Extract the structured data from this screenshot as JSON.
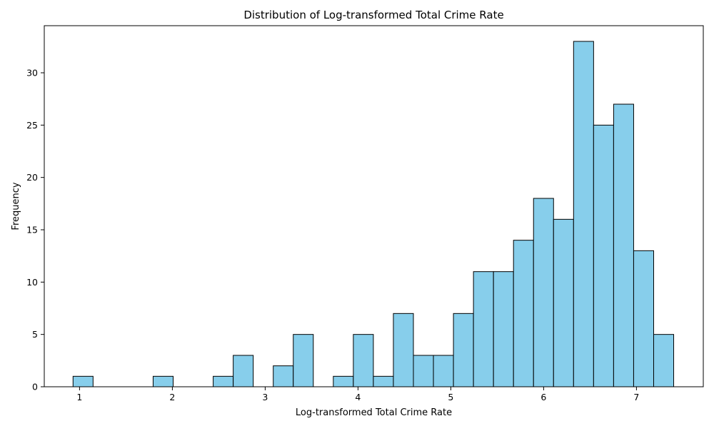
{
  "chart_data": {
    "type": "bar",
    "title": "Distribution of Log-transformed Total Crime Rate",
    "xlabel": "Log-transformed Total Crime Rate",
    "ylabel": "Frequency",
    "xlim": [
      0.62,
      7.72
    ],
    "ylim": [
      0,
      34.5
    ],
    "bin_start": 0.93,
    "bin_width": 0.2157,
    "values": [
      1,
      0,
      0,
      0,
      1,
      0,
      0,
      1,
      3,
      0,
      2,
      5,
      0,
      1,
      5,
      1,
      7,
      3,
      3,
      7,
      11,
      11,
      14,
      18,
      16,
      33,
      25,
      27,
      13,
      5
    ],
    "xticks": [
      "1",
      "2",
      "3",
      "4",
      "5",
      "6",
      "7"
    ],
    "yticks": [
      "0",
      "5",
      "10",
      "15",
      "20",
      "25",
      "30"
    ],
    "grid": false,
    "colors": {
      "bar_fill": "#87CEEB",
      "bar_edge": "#000000",
      "axis": "#000000"
    }
  }
}
